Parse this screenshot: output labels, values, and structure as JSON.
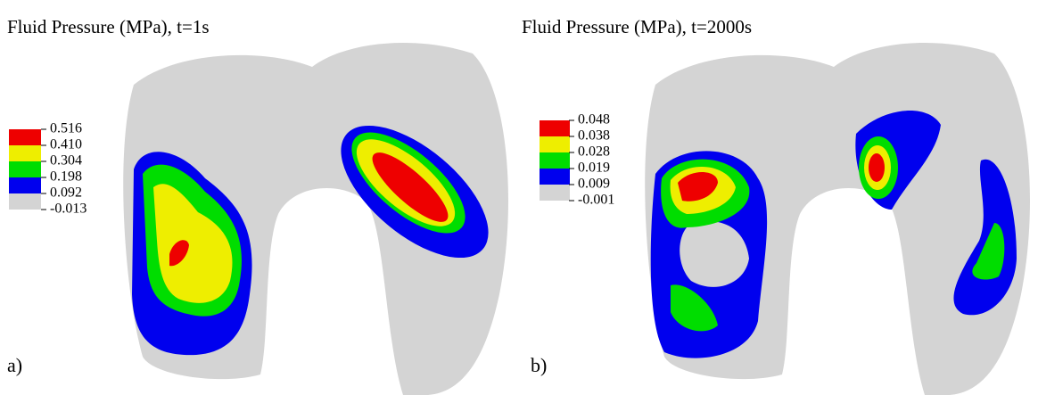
{
  "panels": [
    {
      "title": "Fluid Pressure (MPa), t=1s",
      "label": "a)",
      "legend": [
        "0.516",
        "0.410",
        "0.304",
        "0.198",
        "0.092",
        "-0.013"
      ]
    },
    {
      "title": "Fluid Pressure (MPa), t=2000s",
      "label": "b)",
      "legend": [
        "0.048",
        "0.038",
        "0.028",
        "0.019",
        "0.009",
        "-0.001"
      ]
    }
  ]
}
